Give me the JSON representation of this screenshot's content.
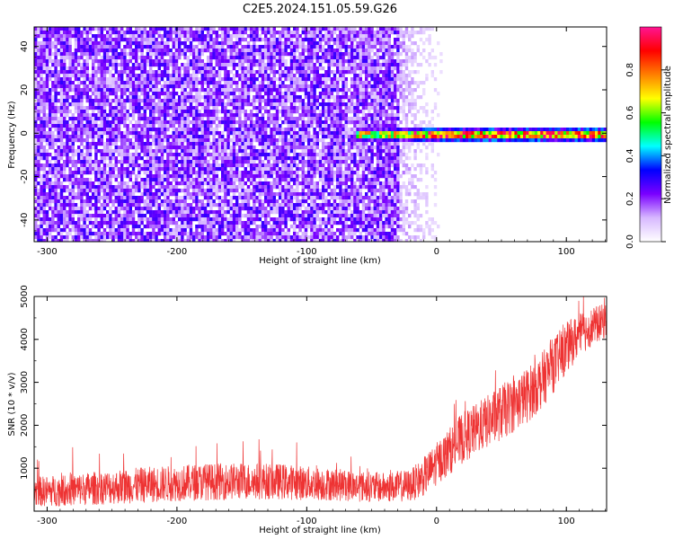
{
  "title": "C2E5.2024.151.05.59.G26",
  "chart_data": [
    {
      "type": "heatmap",
      "title": "C2E5.2024.151.05.59.G26",
      "xlabel": "Height of straight line (km)",
      "ylabel": "Frequency (Hz)",
      "xlim": [
        -310,
        131
      ],
      "ylim": [
        -50,
        49
      ],
      "xticks": [
        -300,
        -200,
        -100,
        0,
        100
      ],
      "yticks": [
        -40,
        -20,
        0,
        20,
        40
      ],
      "colorbar": {
        "label": "Normalized spectral amplitude",
        "range": [
          0.0,
          1.0
        ],
        "ticks": [
          "0.0",
          "0.2",
          "0.4",
          "0.6",
          "0.8"
        ],
        "colormap": [
          "#ffffff",
          "#d7b8ff",
          "#7a00ff",
          "#0000ff",
          "#00ffff",
          "#00ff00",
          "#ffff00",
          "#ff7f00",
          "#ff0000",
          "#ff1493"
        ]
      },
      "regions": [
        {
          "description_x": [
            -310,
            -30
          ],
          "freq": [
            -50,
            49
          ],
          "amplitude": [
            0.05,
            0.3
          ],
          "note": "broadband noise"
        },
        {
          "description_x": [
            -30,
            5
          ],
          "freq": [
            -50,
            49
          ],
          "amplitude": [
            0.0,
            0.1
          ],
          "note": "fading noise"
        },
        {
          "description_x": [
            -60,
            131
          ],
          "freq": [
            -3,
            3
          ],
          "amplitude": [
            0.3,
            1.0
          ],
          "note": "narrow signal near 0 Hz"
        }
      ]
    },
    {
      "type": "line",
      "xlabel": "Height of straight line (km)",
      "ylabel": "SNR (10 * v/v)",
      "xlim": [
        -310,
        131
      ],
      "ylim": [
        0,
        5000
      ],
      "xticks": [
        -300,
        -200,
        -100,
        0,
        100
      ],
      "yticks": [
        1000,
        2000,
        3000,
        4000,
        5000
      ],
      "series": [
        {
          "color": "#ee3333",
          "x": [
            -310,
            -280,
            -250,
            -220,
            -200,
            -180,
            -150,
            -120,
            -100,
            -80,
            -60,
            -40,
            -20,
            -10,
            0,
            10,
            20,
            30,
            40,
            50,
            60,
            70,
            80,
            90,
            100,
            110,
            120,
            131
          ],
          "mean": [
            450,
            500,
            560,
            620,
            650,
            680,
            700,
            690,
            650,
            620,
            580,
            550,
            600,
            800,
            1100,
            1400,
            1700,
            1900,
            2100,
            2300,
            2500,
            2700,
            3000,
            3400,
            3800,
            4100,
            4300,
            4450
          ],
          "spread": [
            350,
            380,
            400,
            420,
            420,
            430,
            430,
            420,
            400,
            380,
            360,
            350,
            380,
            450,
            500,
            550,
            600,
            600,
            620,
            650,
            650,
            650,
            650,
            650,
            600,
            500,
            450,
            400
          ]
        }
      ]
    }
  ]
}
